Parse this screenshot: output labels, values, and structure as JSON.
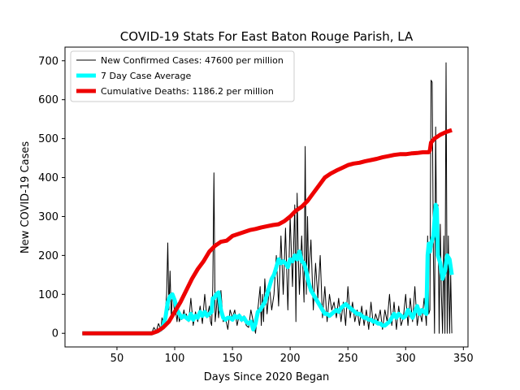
{
  "chart_data": {
    "type": "line",
    "title": "COVID-19 Stats For East Baton Rouge Parish, LA",
    "xlabel": "Days Since 2020 Began",
    "ylabel": "New COVID-19 Cases",
    "xlim": [
      5,
      354
    ],
    "ylim": [
      -35,
      735
    ],
    "xticks": [
      50,
      100,
      150,
      200,
      250,
      300,
      350
    ],
    "yticks": [
      0,
      100,
      200,
      300,
      400,
      500,
      600,
      700
    ],
    "grid": false,
    "legend_position": "top-left",
    "series": [
      {
        "name": "New Confirmed Cases: 47600 per million",
        "color": "#000000",
        "x": [
          20,
          60,
          80,
          82,
          84,
          86,
          88,
          89,
          90,
          91,
          92,
          93,
          94,
          95,
          96,
          97,
          98,
          99,
          100,
          101,
          102,
          103,
          104,
          105,
          106,
          107,
          108,
          109,
          110,
          112,
          114,
          116,
          118,
          120,
          122,
          124,
          126,
          128,
          130,
          131,
          132,
          133,
          134,
          135,
          136,
          137,
          138,
          140,
          142,
          144,
          146,
          148,
          150,
          152,
          154,
          156,
          158,
          160,
          162,
          164,
          166,
          168,
          170,
          172,
          174,
          175,
          176,
          177,
          178,
          180,
          182,
          184,
          186,
          188,
          190,
          192,
          194,
          196,
          198,
          200,
          202,
          204,
          205,
          206,
          207,
          208,
          210,
          212,
          213,
          214,
          215,
          216,
          218,
          220,
          222,
          224,
          226,
          228,
          230,
          232,
          234,
          236,
          238,
          240,
          242,
          244,
          246,
          248,
          250,
          252,
          254,
          256,
          258,
          260,
          262,
          264,
          266,
          268,
          270,
          272,
          274,
          276,
          278,
          280,
          282,
          284,
          286,
          288,
          290,
          292,
          294,
          296,
          298,
          300,
          302,
          304,
          306,
          308,
          310,
          312,
          314,
          316,
          318,
          319,
          320,
          321,
          322,
          323,
          324,
          325,
          326,
          327,
          328,
          329,
          330,
          331,
          332,
          333,
          334,
          335,
          336,
          337,
          338,
          339,
          340
        ],
        "y": [
          0,
          0,
          0,
          15,
          5,
          25,
          10,
          40,
          30,
          20,
          60,
          100,
          232,
          60,
          160,
          40,
          100,
          80,
          50,
          55,
          30,
          60,
          30,
          40,
          35,
          45,
          60,
          40,
          50,
          30,
          90,
          20,
          55,
          30,
          70,
          25,
          100,
          40,
          70,
          30,
          20,
          120,
          412,
          30,
          60,
          100,
          40,
          110,
          30,
          40,
          10,
          60,
          40,
          60,
          20,
          50,
          30,
          45,
          20,
          15,
          60,
          30,
          0,
          60,
          120,
          20,
          100,
          30,
          140,
          50,
          120,
          60,
          100,
          200,
          70,
          250,
          100,
          270,
          60,
          300,
          120,
          330,
          30,
          360,
          200,
          100,
          250,
          80,
          480,
          100,
          300,
          150,
          240,
          60,
          180,
          90,
          200,
          40,
          120,
          30,
          100,
          60,
          80,
          40,
          90,
          30,
          80,
          20,
          120,
          40,
          80,
          30,
          60,
          20,
          70,
          20,
          60,
          10,
          80,
          20,
          50,
          30,
          60,
          10,
          60,
          30,
          100,
          20,
          80,
          10,
          70,
          20,
          40,
          100,
          20,
          90,
          30,
          120,
          20,
          60,
          30,
          90,
          20,
          250,
          50,
          60,
          650,
          645,
          200,
          0,
          530,
          200,
          330,
          0,
          280,
          100,
          0,
          250,
          0,
          695,
          0,
          250,
          0,
          150,
          0
        ]
      },
      {
        "name": "7 Day Case Average",
        "color": "#00FFFF",
        "x": [
          20,
          80,
          85,
          88,
          90,
          92,
          94,
          96,
          98,
          100,
          102,
          104,
          106,
          108,
          110,
          112,
          114,
          116,
          118,
          120,
          122,
          124,
          126,
          128,
          130,
          132,
          133,
          134,
          136,
          138,
          140,
          142,
          144,
          146,
          148,
          150,
          152,
          154,
          156,
          158,
          160,
          162,
          164,
          166,
          168,
          170,
          172,
          174,
          176,
          178,
          180,
          182,
          184,
          186,
          188,
          190,
          192,
          194,
          196,
          198,
          200,
          202,
          204,
          206,
          208,
          210,
          212,
          214,
          216,
          218,
          220,
          222,
          224,
          226,
          228,
          230,
          232,
          234,
          236,
          238,
          240,
          242,
          244,
          246,
          248,
          250,
          252,
          254,
          256,
          258,
          260,
          262,
          264,
          266,
          268,
          270,
          272,
          274,
          276,
          278,
          280,
          282,
          284,
          286,
          288,
          290,
          292,
          294,
          296,
          298,
          300,
          302,
          304,
          306,
          308,
          310,
          312,
          314,
          316,
          318,
          319,
          320,
          321,
          322,
          324,
          326,
          327,
          328,
          330,
          332,
          334,
          336,
          338,
          340
        ],
        "y": [
          0,
          0,
          5,
          10,
          20,
          40,
          80,
          95,
          100,
          85,
          60,
          50,
          40,
          45,
          40,
          35,
          50,
          35,
          45,
          40,
          55,
          45,
          55,
          45,
          50,
          55,
          90,
          90,
          100,
          105,
          60,
          40,
          35,
          40,
          40,
          35,
          45,
          40,
          45,
          35,
          40,
          30,
          25,
          30,
          10,
          25,
          55,
          60,
          70,
          80,
          100,
          120,
          140,
          150,
          170,
          190,
          180,
          185,
          180,
          170,
          190,
          185,
          200,
          190,
          210,
          185,
          180,
          160,
          130,
          110,
          100,
          90,
          80,
          70,
          60,
          50,
          50,
          45,
          50,
          55,
          60,
          55,
          65,
          70,
          75,
          70,
          65,
          60,
          55,
          50,
          50,
          45,
          40,
          40,
          35,
          35,
          30,
          30,
          25,
          25,
          20,
          20,
          25,
          30,
          40,
          50,
          40,
          50,
          45,
          40,
          45,
          60,
          50,
          40,
          55,
          70,
          50,
          60,
          55,
          50,
          200,
          230,
          210,
          230,
          250,
          330,
          320,
          200,
          180,
          140,
          160,
          200,
          190,
          150
        ]
      },
      {
        "name": "Cumulative Deaths: 1186.2 per million",
        "color": "#EE0000",
        "x": [
          20,
          80,
          85,
          90,
          95,
          100,
          105,
          110,
          115,
          120,
          125,
          130,
          135,
          140,
          145,
          150,
          155,
          160,
          165,
          170,
          175,
          180,
          185,
          190,
          195,
          200,
          205,
          210,
          215,
          220,
          225,
          230,
          235,
          240,
          245,
          250,
          255,
          260,
          265,
          270,
          275,
          280,
          285,
          290,
          295,
          300,
          305,
          310,
          315,
          320,
          321,
          322,
          325,
          330,
          335,
          340
        ],
        "y": [
          0,
          0,
          5,
          15,
          30,
          55,
          80,
          110,
          140,
          165,
          185,
          210,
          225,
          235,
          238,
          250,
          255,
          260,
          265,
          268,
          272,
          275,
          278,
          280,
          288,
          300,
          315,
          325,
          340,
          360,
          380,
          400,
          410,
          418,
          425,
          432,
          436,
          438,
          442,
          445,
          448,
          452,
          455,
          458,
          460,
          460,
          462,
          463,
          465,
          465,
          470,
          490,
          500,
          510,
          517,
          522
        ]
      }
    ]
  }
}
